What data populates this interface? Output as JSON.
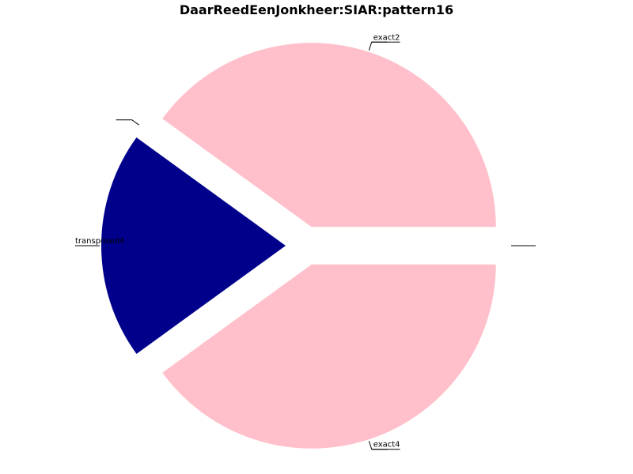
{
  "chart_data": {
    "type": "pie",
    "title": "DaarReedEenJonkheer:SIAR:pattern16",
    "slices": [
      {
        "label": "",
        "value": 0,
        "color": "#ffffff"
      },
      {
        "label": "exact2",
        "value": 40,
        "color": "#ffc0cb"
      },
      {
        "label": "",
        "value": 0,
        "color": "#ffffff"
      },
      {
        "label": "transposed4",
        "value": 20,
        "color": "#00008b"
      },
      {
        "label": "exact4",
        "value": 40,
        "color": "#ffc0cb"
      }
    ],
    "legend": "none",
    "exploded": true
  }
}
